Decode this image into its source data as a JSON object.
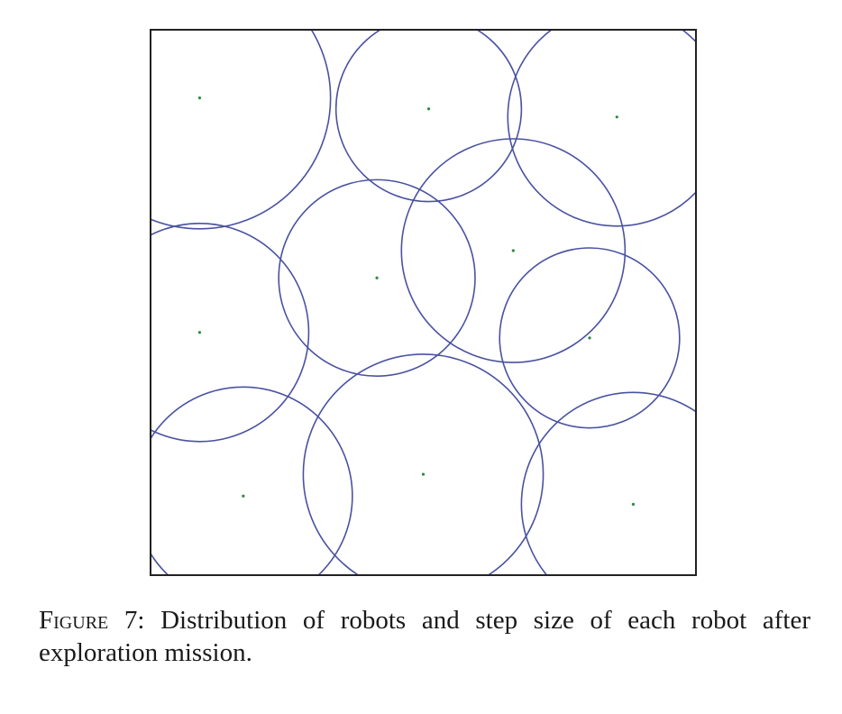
{
  "caption": {
    "label_first": "F",
    "label_rest": "igure 7:",
    "text": " Distribution of robots and step size of each robot after exploration mission."
  },
  "colors": {
    "circle": "#4a52a0",
    "robot": "#2e8b3e",
    "frame": "#222222"
  },
  "chart_data": {
    "type": "scatter",
    "title": "",
    "xlabel": "",
    "ylabel": "",
    "xlim": [
      0,
      100
    ],
    "ylim": [
      0,
      100
    ],
    "grid": false,
    "robots": [
      {
        "x": 9,
        "y": 87.5,
        "r": 24
      },
      {
        "x": 51,
        "y": 85.5,
        "r": 17
      },
      {
        "x": 85.5,
        "y": 84,
        "r": 20
      },
      {
        "x": 66.5,
        "y": 59.5,
        "r": 20.5
      },
      {
        "x": 41.5,
        "y": 54.5,
        "r": 18
      },
      {
        "x": 9,
        "y": 44.5,
        "r": 20
      },
      {
        "x": 80.5,
        "y": 43.5,
        "r": 16.5
      },
      {
        "x": 17,
        "y": 14.5,
        "r": 20
      },
      {
        "x": 50,
        "y": 18.5,
        "r": 22
      },
      {
        "x": 88.5,
        "y": 13,
        "r": 20.5
      }
    ]
  }
}
